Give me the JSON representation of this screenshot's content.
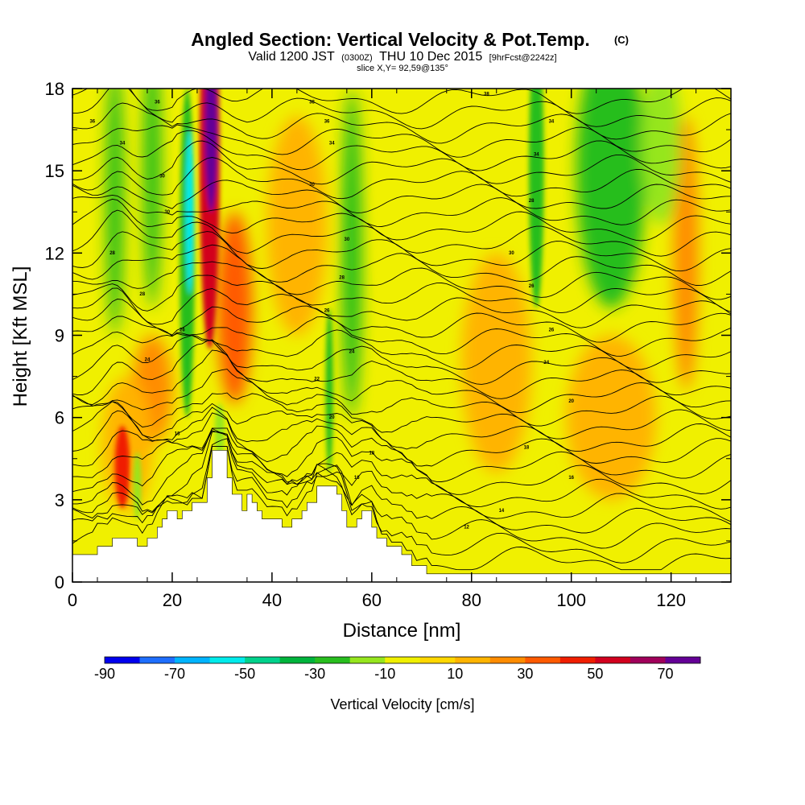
{
  "chart_data": {
    "type": "heatmap",
    "title": "Angled Section: Vertical Velocity & Pot.Temp.",
    "title_suffix": "(C)",
    "subtitle_parts": [
      "Valid 1200 JST",
      "(0300Z)",
      "THU 10 Dec 2015",
      "[9hrFcst@2242z]"
    ],
    "slice_label": "slice X,Y= 92,59@135°",
    "xlabel": "Distance [nm]",
    "ylabel": "Height [Kft MSL]",
    "xlim": [
      0,
      132
    ],
    "ylim": [
      0,
      18
    ],
    "x_ticks": [
      0,
      20,
      40,
      60,
      80,
      100,
      120
    ],
    "x_tick_labels": [
      "0",
      "20",
      "40",
      "60",
      "80",
      "100",
      "120"
    ],
    "y_ticks": [
      0,
      3,
      6,
      9,
      12,
      15,
      18
    ],
    "y_tick_labels": [
      "0",
      "3",
      "6",
      "9",
      "12",
      "15",
      "18"
    ],
    "colorbar": {
      "title": "Vertical Velocity [cm/s]",
      "min": -90,
      "max": 80,
      "step": 10,
      "tick_values": [
        -90,
        -70,
        -50,
        -30,
        -10,
        10,
        30,
        50,
        70
      ],
      "tick_labels": [
        "-90",
        "-70",
        "-50",
        "-30",
        "-10",
        "10",
        "30",
        "50",
        "70"
      ],
      "colors": [
        "#0000ee",
        "#1e6eff",
        "#00b4ff",
        "#00ebeb",
        "#00d28c",
        "#00b43c",
        "#28be1e",
        "#96e61e",
        "#f0f000",
        "#ffd700",
        "#ffb400",
        "#ff8c00",
        "#ff5a00",
        "#f01e00",
        "#d2001e",
        "#a0005a",
        "#640096"
      ]
    },
    "terrain_kft": [
      [
        0,
        1.0
      ],
      [
        5,
        1.0
      ],
      [
        5,
        1.3
      ],
      [
        8,
        1.3
      ],
      [
        8,
        1.6
      ],
      [
        13,
        1.6
      ],
      [
        13,
        1.3
      ],
      [
        15,
        1.3
      ],
      [
        15,
        1.6
      ],
      [
        17,
        1.6
      ],
      [
        17,
        2.0
      ],
      [
        18,
        2.0
      ],
      [
        18,
        2.3
      ],
      [
        19,
        2.3
      ],
      [
        19,
        2.6
      ],
      [
        21,
        2.6
      ],
      [
        21,
        2.3
      ],
      [
        22,
        2.3
      ],
      [
        22,
        2.6
      ],
      [
        24,
        2.6
      ],
      [
        24,
        2.9
      ],
      [
        27,
        2.9
      ],
      [
        27,
        3.8
      ],
      [
        28,
        3.8
      ],
      [
        28,
        4.8
      ],
      [
        31,
        4.8
      ],
      [
        31,
        3.8
      ],
      [
        32,
        3.8
      ],
      [
        32,
        3.2
      ],
      [
        34,
        3.2
      ],
      [
        34,
        2.6
      ],
      [
        35,
        2.6
      ],
      [
        35,
        3.2
      ],
      [
        36,
        3.2
      ],
      [
        36,
        2.9
      ],
      [
        37,
        2.9
      ],
      [
        37,
        2.6
      ],
      [
        38,
        2.6
      ],
      [
        38,
        2.3
      ],
      [
        42,
        2.3
      ],
      [
        42,
        2.0
      ],
      [
        44,
        2.0
      ],
      [
        44,
        2.3
      ],
      [
        46,
        2.3
      ],
      [
        46,
        2.6
      ],
      [
        47,
        2.6
      ],
      [
        47,
        2.9
      ],
      [
        49,
        2.9
      ],
      [
        49,
        3.5
      ],
      [
        53,
        3.5
      ],
      [
        53,
        3.2
      ],
      [
        54,
        3.2
      ],
      [
        54,
        2.6
      ],
      [
        55,
        2.6
      ],
      [
        55,
        2.0
      ],
      [
        57,
        2.0
      ],
      [
        57,
        2.3
      ],
      [
        58,
        2.3
      ],
      [
        58,
        2.6
      ],
      [
        60,
        2.6
      ],
      [
        60,
        2.0
      ],
      [
        61,
        2.0
      ],
      [
        61,
        1.6
      ],
      [
        63,
        1.6
      ],
      [
        63,
        1.3
      ],
      [
        66,
        1.3
      ],
      [
        66,
        1.0
      ],
      [
        68,
        1.0
      ],
      [
        68,
        0.6
      ],
      [
        71,
        0.6
      ],
      [
        71,
        0.3
      ],
      [
        132,
        0.3
      ],
      [
        132,
        0.0
      ],
      [
        0,
        0.0
      ]
    ],
    "updraft_cores": [
      {
        "x": 27.5,
        "y": 15.5,
        "w": 4.0,
        "h": 14.0,
        "value": 55
      },
      {
        "x": 27.8,
        "y": 16.5,
        "w": 2.5,
        "h": 6.0,
        "value": 75
      },
      {
        "x": 32.5,
        "y": 10.0,
        "w": 7.0,
        "h": 7.0,
        "value": 30
      },
      {
        "x": 10.0,
        "y": 4.2,
        "w": 3.0,
        "h": 3.0,
        "value": 45
      },
      {
        "x": 16.0,
        "y": 7.0,
        "w": 8.0,
        "h": 4.0,
        "value": 25
      },
      {
        "x": 11.0,
        "y": 5.0,
        "w": 10.0,
        "h": 5.0,
        "value": 15
      },
      {
        "x": 45.0,
        "y": 13.0,
        "w": 12.0,
        "h": 8.0,
        "value": 15
      },
      {
        "x": 123.0,
        "y": 12.0,
        "w": 5.0,
        "h": 10.0,
        "value": 25
      },
      {
        "x": 85.0,
        "y": 8.0,
        "w": 14.0,
        "h": 8.0,
        "value": 15
      },
      {
        "x": 108.0,
        "y": 6.0,
        "w": 18.0,
        "h": 6.0,
        "value": 15
      }
    ],
    "downdraft_cores": [
      {
        "x": 23.0,
        "y": 12.0,
        "w": 3.0,
        "h": 12.0,
        "value": -30
      },
      {
        "x": 23.5,
        "y": 13.5,
        "w": 1.6,
        "h": 6.0,
        "value": -55
      },
      {
        "x": 8.5,
        "y": 14.0,
        "w": 3.5,
        "h": 10.0,
        "value": -25
      },
      {
        "x": 16.0,
        "y": 15.0,
        "w": 3.5,
        "h": 10.0,
        "value": -30
      },
      {
        "x": 56.0,
        "y": 12.0,
        "w": 4.0,
        "h": 12.0,
        "value": -30
      },
      {
        "x": 51.5,
        "y": 7.0,
        "w": 1.5,
        "h": 6.0,
        "value": -30
      },
      {
        "x": 108.0,
        "y": 15.0,
        "w": 14.0,
        "h": 10.0,
        "value": -30
      },
      {
        "x": 93.0,
        "y": 15.0,
        "w": 3.0,
        "h": 10.0,
        "value": -25
      },
      {
        "x": 118.0,
        "y": 16.0,
        "w": 8.0,
        "h": 6.0,
        "value": -20
      },
      {
        "x": 66.0,
        "y": 13.0,
        "w": 5.0,
        "h": 8.0,
        "value": -10
      },
      {
        "x": 29.5,
        "y": 5.5,
        "w": 2.0,
        "h": 2.0,
        "value": -20
      },
      {
        "x": 13.0,
        "y": 3.5,
        "w": 1.6,
        "h": 2.5,
        "value": -15
      }
    ],
    "contour_labels": [
      {
        "x": 17,
        "y": 17.5,
        "text": "36"
      },
      {
        "x": 48,
        "y": 17.5,
        "text": "38"
      },
      {
        "x": 83,
        "y": 17.8,
        "text": "38"
      },
      {
        "x": 4,
        "y": 16.8,
        "text": "36"
      },
      {
        "x": 51,
        "y": 16.8,
        "text": "36"
      },
      {
        "x": 96,
        "y": 16.8,
        "text": "34"
      },
      {
        "x": 10,
        "y": 16.0,
        "text": "34"
      },
      {
        "x": 52,
        "y": 16.0,
        "text": "34"
      },
      {
        "x": 93,
        "y": 15.6,
        "text": "34"
      },
      {
        "x": 18,
        "y": 14.8,
        "text": "30"
      },
      {
        "x": 48,
        "y": 14.5,
        "text": "30"
      },
      {
        "x": 19,
        "y": 13.5,
        "text": "30"
      },
      {
        "x": 92,
        "y": 13.9,
        "text": "28"
      },
      {
        "x": 55,
        "y": 12.5,
        "text": "30"
      },
      {
        "x": 8,
        "y": 12.0,
        "text": "28"
      },
      {
        "x": 88,
        "y": 12.0,
        "text": "30"
      },
      {
        "x": 54,
        "y": 11.1,
        "text": "28"
      },
      {
        "x": 14,
        "y": 10.5,
        "text": "28"
      },
      {
        "x": 92,
        "y": 10.8,
        "text": "26"
      },
      {
        "x": 51,
        "y": 9.9,
        "text": "26"
      },
      {
        "x": 22,
        "y": 9.2,
        "text": "26"
      },
      {
        "x": 96,
        "y": 9.2,
        "text": "26"
      },
      {
        "x": 56,
        "y": 8.4,
        "text": "24"
      },
      {
        "x": 15,
        "y": 8.1,
        "text": "24"
      },
      {
        "x": 95,
        "y": 8.0,
        "text": "24"
      },
      {
        "x": 49,
        "y": 7.4,
        "text": "22"
      },
      {
        "x": 100,
        "y": 6.6,
        "text": "20"
      },
      {
        "x": 52,
        "y": 6.0,
        "text": "20"
      },
      {
        "x": 21,
        "y": 5.4,
        "text": "18"
      },
      {
        "x": 60,
        "y": 4.7,
        "text": "18"
      },
      {
        "x": 91,
        "y": 4.9,
        "text": "18"
      },
      {
        "x": 57,
        "y": 3.8,
        "text": "16"
      },
      {
        "x": 100,
        "y": 3.8,
        "text": "16"
      },
      {
        "x": 86,
        "y": 2.6,
        "text": "14"
      },
      {
        "x": 79,
        "y": 2.0,
        "text": "12"
      }
    ]
  }
}
